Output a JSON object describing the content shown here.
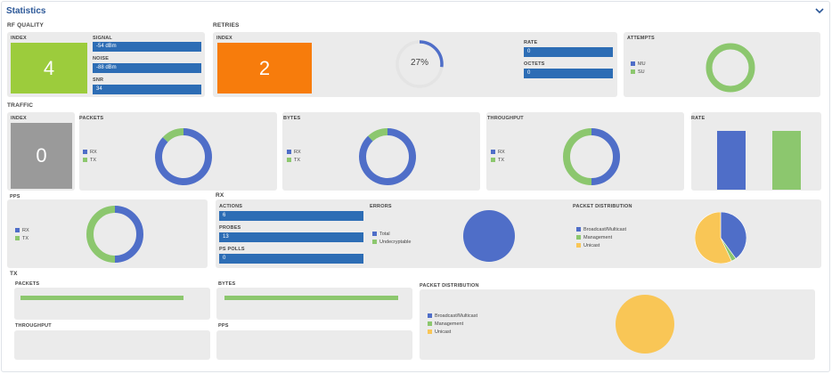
{
  "header": {
    "title": "Statistics"
  },
  "colors": {
    "green": "#9ccc3c",
    "orange": "#f77c0c",
    "blue": "#4f6ec8",
    "lightgreen": "#8cc76e",
    "yellow": "#f9c656",
    "bar_blue": "#2d6db5",
    "gray": "#9a9a9a"
  },
  "rf_quality": {
    "section": "RF QUALITY",
    "index_label": "INDEX",
    "index_value": "4",
    "signal_label": "SIGNAL",
    "signal_value": "-54 dBm",
    "noise_label": "NOISE",
    "noise_value": "-88 dBm",
    "snr_label": "SNR",
    "snr_value": "34"
  },
  "retries": {
    "section": "RETRIES",
    "index_label": "INDEX",
    "index_value": "2",
    "percent": 27,
    "percent_label": "27%",
    "rate_label": "RATE",
    "rate_value": "0",
    "octets_label": "OCTETS",
    "octets_value": "0",
    "attempts_label": "ATTEMPTS",
    "attempts_legend": [
      "MU",
      "SU"
    ]
  },
  "traffic": {
    "section": "TRAFFIC",
    "index_label": "INDEX",
    "index_value": "0",
    "packets_label": "PACKETS",
    "bytes_label": "BYTES",
    "throughput_label": "THROUGHPUT",
    "rate_label": "RATE",
    "pps_label": "PPS",
    "legend": [
      "RX",
      "TX"
    ]
  },
  "rx": {
    "section": "RX",
    "actions_label": "ACTIONS",
    "actions_value": "6",
    "probes_label": "PROBES",
    "probes_value": "13",
    "ps_polls_label": "PS POLLS",
    "ps_polls_value": "0",
    "errors_label": "ERRORS",
    "errors_legend": [
      "Total",
      "Undecryptable"
    ],
    "distribution_label": "PACKET DISTRIBUTION",
    "distribution_legend": [
      "Broadcast/Multicast",
      "Management",
      "Unicast"
    ]
  },
  "tx": {
    "section": "TX",
    "packets_label": "PACKETS",
    "bytes_label": "BYTES",
    "throughput_label": "THROUGHPUT",
    "pps_label": "PPS",
    "distribution_label": "PACKET DISTRIBUTION",
    "distribution_legend": [
      "Broadcast/Multicast",
      "Management",
      "Unicast"
    ]
  },
  "chart_data": [
    {
      "type": "pie",
      "name_ref": "traffic-packets",
      "values": [
        87,
        13
      ],
      "labels": [
        "RX",
        "TX"
      ]
    },
    {
      "type": "pie",
      "name_ref": "traffic-bytes",
      "values": [
        88,
        12
      ],
      "labels": [
        "RX",
        "TX"
      ]
    },
    {
      "type": "pie",
      "name_ref": "traffic-throughput",
      "values": [
        50,
        50
      ],
      "labels": [
        "RX",
        "TX"
      ]
    },
    {
      "type": "bar",
      "name_ref": "traffic-rate",
      "categories": [
        "RX",
        "TX"
      ],
      "values": [
        1,
        1
      ]
    },
    {
      "type": "pie",
      "name_ref": "traffic-pps",
      "values": [
        50,
        50
      ],
      "labels": [
        "RX",
        "TX"
      ]
    },
    {
      "type": "pie",
      "name_ref": "rx-errors",
      "values": [
        100,
        0
      ],
      "labels": [
        "Total",
        "Undecryptable"
      ]
    },
    {
      "type": "pie",
      "name_ref": "rx-distribution",
      "values": [
        40,
        3,
        57
      ],
      "labels": [
        "Broadcast/Multicast",
        "Management",
        "Unicast"
      ]
    },
    {
      "type": "pie",
      "name_ref": "tx-distribution",
      "values": [
        0,
        0,
        100
      ],
      "labels": [
        "Broadcast/Multicast",
        "Management",
        "Unicast"
      ]
    },
    {
      "type": "pie",
      "name_ref": "retries-attempts",
      "values": [
        0,
        100
      ],
      "labels": [
        "MU",
        "SU"
      ]
    }
  ]
}
